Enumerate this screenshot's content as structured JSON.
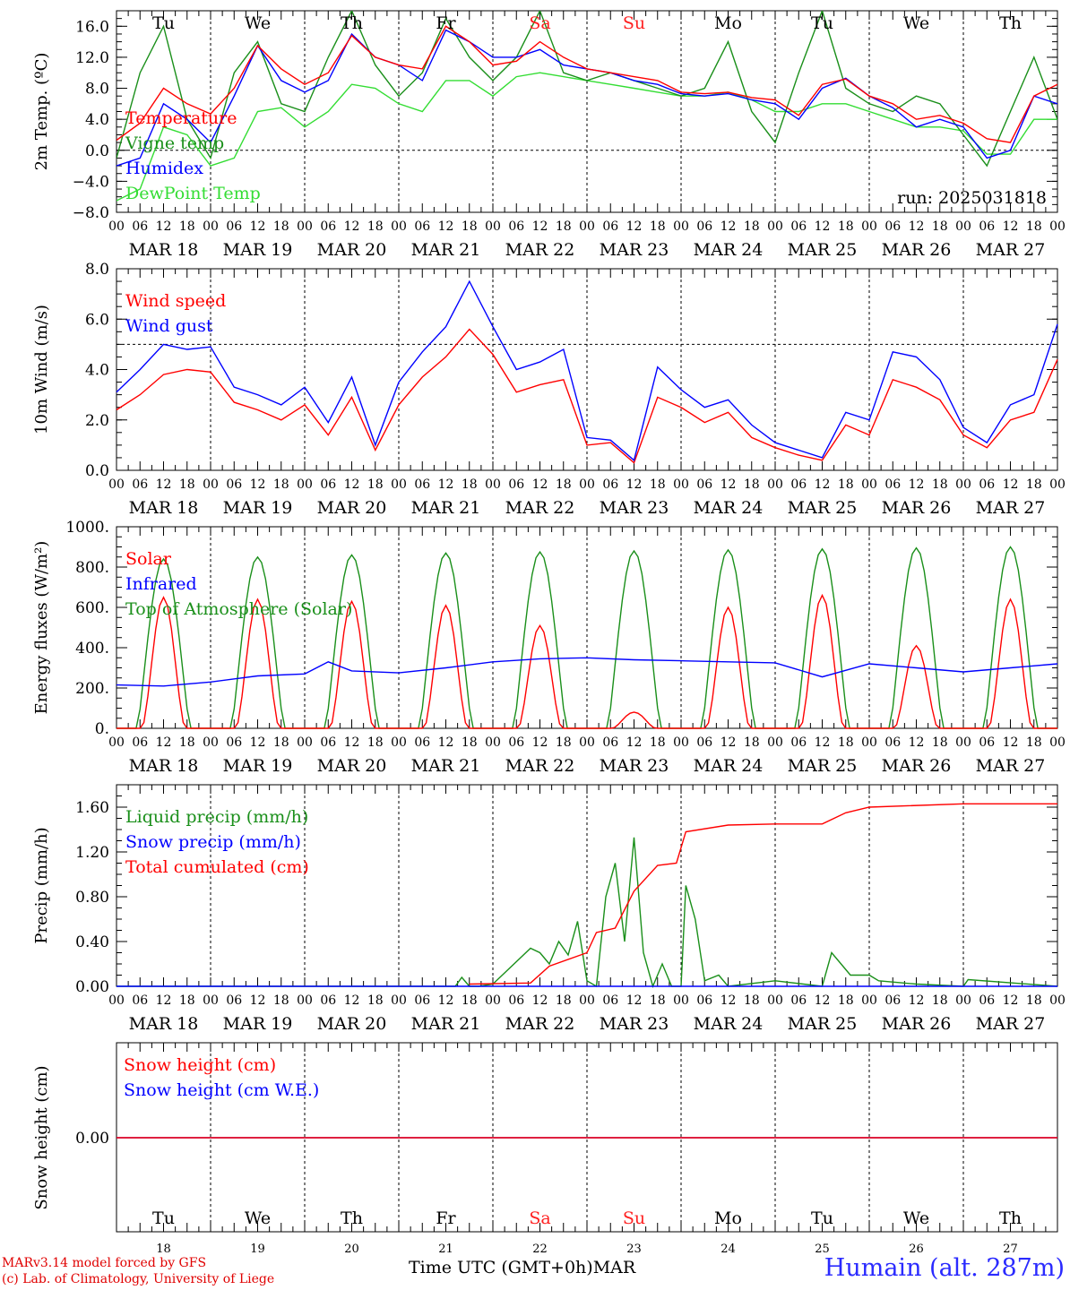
{
  "footer": {
    "model": "MARv3.14 model forced by GFS",
    "credit": "(c) Lab. of Climatology, University of Liege",
    "time_label": "Time UTC (GMT+0h)",
    "month": "MAR",
    "station": "Humain (alt. 287m)"
  },
  "hour_ticks": [
    "00",
    "06",
    "12",
    "18"
  ],
  "end_tick": "00",
  "date_labels": [
    "MAR 18",
    "MAR 19",
    "MAR 20",
    "MAR 21",
    "MAR 22",
    "MAR 23",
    "MAR 24",
    "MAR 25",
    "MAR 26",
    "MAR 27"
  ],
  "day_abbr": [
    "Tu",
    "We",
    "Th",
    "Fr",
    "Sa",
    "Su",
    "Mo",
    "Tu",
    "We",
    "Th"
  ],
  "day_numbers": [
    "18",
    "19",
    "20",
    "21",
    "22",
    "23",
    "24",
    "25",
    "26",
    "27"
  ],
  "weekend_days": [
    4,
    5
  ],
  "colors": {
    "red": "#ff0000",
    "green": "#1a8f1a",
    "blue": "#0000ff",
    "lightgreen": "#33dd33",
    "weekend": "#ff2020"
  },
  "chart_data": [
    {
      "type": "line",
      "ylabel": "2m Temp. (ºC)",
      "ylim": [
        -8,
        18
      ],
      "yticks": [
        -8,
        -4,
        0,
        4,
        8,
        12,
        16
      ],
      "ytick_labels": [
        "−8.0",
        "−4.0",
        "0.0",
        "4.0",
        "8.0",
        "12.0",
        "16.0"
      ],
      "ref_line": 0,
      "run_label": "run: 2025031818",
      "x_days": [
        0,
        0.25,
        0.5,
        0.75,
        1,
        1.25,
        1.5,
        1.75,
        2,
        2.25,
        2.5,
        2.75,
        3,
        3.25,
        3.5,
        3.75,
        4,
        4.25,
        4.5,
        4.75,
        5,
        5.25,
        5.5,
        5.75,
        6,
        6.25,
        6.5,
        6.75,
        7,
        7.25,
        7.5,
        7.75,
        8,
        8.25,
        8.5,
        8.75,
        9,
        9.25,
        9.5,
        9.75,
        10
      ],
      "series": [
        {
          "name": "Temperature",
          "color": "red",
          "values": [
            1.3,
            3.5,
            8,
            6,
            4.7,
            8,
            13.5,
            10.5,
            8.5,
            10,
            14.8,
            12,
            11,
            10.5,
            16,
            14,
            11,
            11.5,
            14,
            12,
            10.5,
            10,
            9.5,
            9,
            7.5,
            7.3,
            7.5,
            6.8,
            6.5,
            4.5,
            8.5,
            9.2,
            7,
            6,
            4,
            4.5,
            3.5,
            1.5,
            1,
            7,
            8.5
          ]
        },
        {
          "name": "Vigne temp",
          "color": "green",
          "values": [
            -1,
            10,
            16,
            4,
            -1,
            10,
            14,
            6,
            5,
            12,
            18,
            11,
            7,
            10,
            17,
            12,
            9,
            12,
            18,
            10,
            9,
            10,
            9,
            8,
            7,
            8,
            14,
            5,
            1,
            10,
            18,
            8,
            6,
            5,
            7,
            6,
            2,
            -2,
            5,
            12,
            4
          ]
        },
        {
          "name": "Humidex",
          "color": "blue",
          "values": [
            -2,
            -1,
            6,
            4,
            1,
            7,
            13.5,
            9,
            7.5,
            9,
            15,
            12,
            11,
            9,
            15.5,
            14,
            12,
            12,
            13,
            11,
            10.5,
            10,
            9,
            8.5,
            7.3,
            7,
            7.3,
            6.5,
            6,
            4,
            8,
            9.3,
            7,
            5.5,
            3,
            4,
            3,
            -1,
            0,
            7,
            6
          ]
        },
        {
          "name": "DewPoint Temp",
          "color": "lightgreen",
          "values": [
            -6.5,
            -5,
            3,
            2,
            -2,
            -1,
            5,
            5.5,
            3,
            5,
            8.5,
            8,
            6,
            5,
            9,
            9,
            7,
            9.5,
            10,
            9.5,
            9,
            8.5,
            8,
            7.5,
            7,
            7,
            7.5,
            6.5,
            5,
            5,
            6,
            6,
            5,
            4,
            3,
            3,
            2.5,
            -0.5,
            -0.5,
            4,
            4
          ]
        }
      ]
    },
    {
      "type": "line",
      "ylabel": "10m Wind (m/s)",
      "ylim": [
        0,
        8
      ],
      "yticks": [
        0,
        2,
        4,
        6,
        8
      ],
      "ytick_labels": [
        "0.0",
        "2.0",
        "4.0",
        "6.0",
        "8.0"
      ],
      "ref_line": 5,
      "x_days": [
        0,
        0.25,
        0.5,
        0.75,
        1,
        1.25,
        1.5,
        1.75,
        2,
        2.25,
        2.5,
        2.75,
        3,
        3.25,
        3.5,
        3.75,
        4,
        4.25,
        4.5,
        4.75,
        5,
        5.25,
        5.5,
        5.75,
        6,
        6.25,
        6.5,
        6.75,
        7,
        7.25,
        7.5,
        7.75,
        8,
        8.25,
        8.5,
        8.75,
        9,
        9.25,
        9.5,
        9.75,
        10
      ],
      "series": [
        {
          "name": "Wind speed",
          "color": "red",
          "values": [
            2.4,
            3,
            3.8,
            4,
            3.9,
            2.7,
            2.4,
            2,
            2.6,
            1.4,
            2.9,
            0.8,
            2.6,
            3.7,
            4.5,
            5.6,
            4.6,
            3.1,
            3.4,
            3.6,
            1,
            1.1,
            0.3,
            2.9,
            2.5,
            1.9,
            2.3,
            1.3,
            0.9,
            0.6,
            0.4,
            1.8,
            1.4,
            3.6,
            3.3,
            2.8,
            1.4,
            0.9,
            2,
            2.3,
            4.4
          ]
        },
        {
          "name": "Wind gust",
          "color": "blue",
          "values": [
            3.1,
            4,
            5,
            4.8,
            4.9,
            3.3,
            3,
            2.6,
            3.3,
            1.9,
            3.7,
            1,
            3.5,
            4.7,
            5.7,
            7.5,
            5.7,
            4,
            4.3,
            4.8,
            1.3,
            1.2,
            0.4,
            4.1,
            3.2,
            2.5,
            2.8,
            1.8,
            1.1,
            0.8,
            0.5,
            2.3,
            2,
            4.7,
            4.5,
            3.6,
            1.7,
            1.1,
            2.6,
            3,
            5.8
          ]
        }
      ]
    },
    {
      "type": "line",
      "ylabel": "Energy fluxes (W/m²)",
      "ylim": [
        0,
        1000
      ],
      "yticks": [
        0,
        200,
        400,
        600,
        800,
        1000
      ],
      "ytick_labels": [
        "0.",
        "200.",
        "400.",
        "600.",
        "800.",
        "1000."
      ],
      "series": [
        {
          "name": "Solar",
          "color": "red",
          "daily_peak": [
            650,
            640,
            630,
            610,
            510,
            80,
            600,
            660,
            410,
            640
          ]
        },
        {
          "name": "Infrared",
          "color": "blue",
          "x_days": [
            0,
            0.5,
            1,
            1.5,
            2,
            2.25,
            2.5,
            3,
            3.5,
            4,
            4.5,
            5,
            5.5,
            6,
            6.5,
            7,
            7.5,
            8,
            8.5,
            9,
            9.5,
            10
          ],
          "values": [
            215,
            210,
            230,
            260,
            270,
            330,
            285,
            275,
            300,
            330,
            345,
            350,
            340,
            335,
            330,
            325,
            255,
            320,
            300,
            280,
            300,
            320
          ]
        },
        {
          "name": "Top of Atmosphere (Solar)",
          "color": "green",
          "daily_peak": [
            840,
            850,
            860,
            870,
            875,
            880,
            885,
            890,
            895,
            900
          ]
        }
      ]
    },
    {
      "type": "line",
      "ylabel": "Precip (mm/h)",
      "ylim": [
        0,
        1.8
      ],
      "yticks": [
        0,
        0.4,
        0.8,
        1.2,
        1.6
      ],
      "ytick_labels": [
        "0.00",
        "0.40",
        "0.80",
        "1.20",
        "1.60"
      ],
      "series": [
        {
          "name": "Liquid precip (mm/h)",
          "color": "green",
          "x_days": [
            0,
            3.6,
            3.67,
            3.75,
            3.85,
            4,
            4.4,
            4.5,
            4.6,
            4.7,
            4.8,
            4.9,
            5,
            5.1,
            5.2,
            5.3,
            5.4,
            5.5,
            5.6,
            5.7,
            5.8,
            5.9,
            6,
            6.05,
            6.15,
            6.25,
            6.4,
            6.5,
            7,
            7.5,
            7.6,
            7.8,
            8,
            8.1,
            8.5,
            9,
            9.05,
            10
          ],
          "values": [
            0,
            0,
            0.08,
            0,
            0,
            0.02,
            0.34,
            0.3,
            0.2,
            0.4,
            0.28,
            0.58,
            0.05,
            0,
            0.8,
            1.1,
            0.4,
            1.33,
            0.3,
            0,
            0.2,
            0,
            0,
            0.9,
            0.6,
            0.05,
            0.1,
            0,
            0.05,
            0,
            0.3,
            0.1,
            0.1,
            0.05,
            0.02,
            0,
            0.06,
            0
          ]
        },
        {
          "name": "Snow precip (mm/h)",
          "color": "blue",
          "x_days": [
            0,
            10
          ],
          "values": [
            0,
            0
          ]
        },
        {
          "name": "Total cumulated (cm)",
          "color": "red",
          "x_days": [
            0,
            3.67,
            3.75,
            4.4,
            4.6,
            5,
            5.1,
            5.3,
            5.5,
            5.75,
            5.95,
            6.05,
            6.5,
            7,
            7.25,
            7.5,
            7.75,
            8,
            9,
            10
          ],
          "values": [
            null,
            null,
            0.02,
            0.03,
            0.18,
            0.3,
            0.48,
            0.52,
            0.85,
            1.08,
            1.1,
            1.38,
            1.44,
            1.45,
            1.45,
            1.45,
            1.55,
            1.6,
            1.63,
            1.63
          ]
        }
      ]
    },
    {
      "type": "line",
      "ylabel": "Snow height (cm)",
      "yticks": [
        0
      ],
      "ytick_labels": [
        "0.00"
      ],
      "series": [
        {
          "name": "Snow height (cm)",
          "color": "red",
          "values": [
            0,
            0
          ]
        },
        {
          "name": "Snow height (cm W.E.)",
          "color": "blue",
          "values": [
            0,
            0
          ]
        }
      ]
    }
  ]
}
